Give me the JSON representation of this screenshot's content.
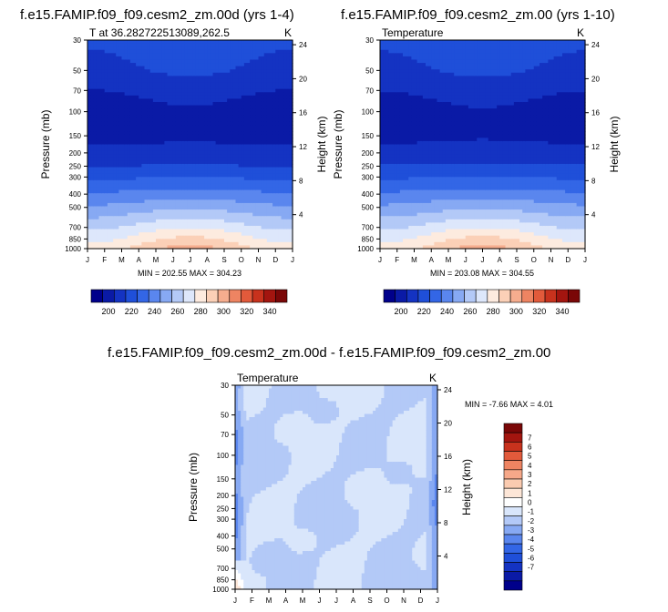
{
  "colors": {
    "t_levels": [
      "#00008b",
      "#0a1aa6",
      "#1433c2",
      "#1f4fd9",
      "#3366e6",
      "#5a86ee",
      "#87a9f3",
      "#b3c9f7",
      "#dde7fb",
      "#fdebdf",
      "#fbd0b7",
      "#f6ad8e",
      "#ee8462",
      "#e25a3b",
      "#c8321d",
      "#a3150f",
      "#7a0707"
    ],
    "d_levels": [
      "#00008b",
      "#0a1aa6",
      "#1433c2",
      "#1f4fd9",
      "#3366e6",
      "#5a86ee",
      "#87a9f3",
      "#b3c9f7",
      "#d9e6fb",
      "#ffffff",
      "#fde6d7",
      "#fbcbb0",
      "#f6a889",
      "#ee8462",
      "#e25a3b",
      "#c8321d",
      "#a3150f",
      "#7a0707"
    ]
  },
  "months": [
    "J",
    "F",
    "M",
    "A",
    "M",
    "J",
    "J",
    "A",
    "S",
    "O",
    "N",
    "D",
    "J"
  ],
  "pressure_ticks": [
    "30",
    "50",
    "70",
    "100",
    "150",
    "200",
    "250",
    "300",
    "400",
    "500",
    "700",
    "850",
    "1000"
  ],
  "height_ticks": [
    "24",
    "20",
    "16",
    "12",
    "8",
    "4"
  ],
  "pressure_axis_label": "Pressure (mb)",
  "height_axis_label": "Height (km)",
  "chart_data": [
    {
      "type": "heatmap",
      "title": "f.e15.FAMIP.f09_f09.cesm2_zm.00d (yrs 1-4)",
      "left_label": "T at 36.282722513089,262.5",
      "right_label": "K",
      "min_max_text": "MIN = 202.55  MAX = 304.23",
      "min": 202.55,
      "max": 304.23,
      "x": [
        "J",
        "F",
        "M",
        "A",
        "M",
        "J",
        "J",
        "A",
        "S",
        "O",
        "N",
        "D",
        "J"
      ],
      "y_pressure": [
        30,
        1000
      ],
      "yscale": "log",
      "colorbar_ticks": [
        "200",
        "220",
        "240",
        "260",
        "280",
        "300",
        "320",
        "340"
      ]
    },
    {
      "type": "heatmap",
      "title": "f.e15.FAMIP.f09_f09.cesm2_zm.00 (yrs 1-10)",
      "left_label": "Temperature",
      "right_label": "K",
      "min_max_text": "MIN = 203.08  MAX = 304.55",
      "min": 203.08,
      "max": 304.55,
      "x": [
        "J",
        "F",
        "M",
        "A",
        "M",
        "J",
        "J",
        "A",
        "S",
        "O",
        "N",
        "D",
        "J"
      ],
      "y_pressure": [
        30,
        1000
      ],
      "yscale": "log",
      "colorbar_ticks": [
        "200",
        "220",
        "240",
        "260",
        "280",
        "300",
        "320",
        "340"
      ]
    },
    {
      "type": "heatmap",
      "title": "f.e15.FAMIP.f09_f09.cesm2_zm.00d - f.e15.FAMIP.f09_f09.cesm2_zm.00",
      "left_label": "Temperature",
      "right_label": "K",
      "min_max_text": "MIN = -7.66  MAX =   4.01",
      "min": -7.66,
      "max": 4.01,
      "x": [
        "J",
        "F",
        "M",
        "A",
        "M",
        "J",
        "J",
        "A",
        "S",
        "O",
        "N",
        "D",
        "J"
      ],
      "y_pressure": [
        30,
        1000
      ],
      "yscale": "log",
      "colorbar_ticks": [
        "7",
        "6",
        "5",
        "4",
        "3",
        "2",
        "1",
        "0",
        "-1",
        "-2",
        "-3",
        "-4",
        "-5",
        "-6",
        "-7"
      ]
    }
  ]
}
